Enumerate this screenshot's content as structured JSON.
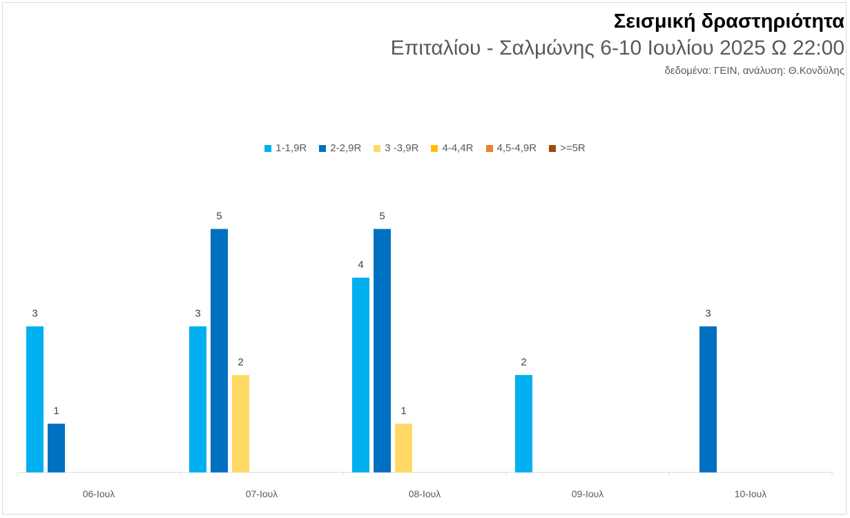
{
  "chart_data": {
    "type": "bar",
    "title": "Σεισμική δραστηριότητα",
    "subtitle": "Επιταλίου - Σαλμώνης 6-10 Ιουλίου 2025 Ω 22:00",
    "source": "δεδομένα: ΓΕΙΝ, ανάλυση: Θ.Κονδύλης",
    "categories": [
      "06-Ιουλ",
      "07-Ιουλ",
      "08-Ιουλ",
      "09-Ιουλ",
      "10-Ιουλ"
    ],
    "series": [
      {
        "name": "1-1,9R",
        "color": "#00B0F0",
        "values": [
          3,
          3,
          4,
          2,
          null
        ]
      },
      {
        "name": "2-2,9R",
        "color": "#0070C0",
        "values": [
          1,
          5,
          5,
          null,
          3
        ]
      },
      {
        "name": "3 -3,9R",
        "color": "#FFD966",
        "values": [
          null,
          2,
          1,
          null,
          null
        ]
      },
      {
        "name": "4-4,4R",
        "color": "#FFC000",
        "values": [
          null,
          null,
          null,
          null,
          null
        ]
      },
      {
        "name": "4,5-4,9R",
        "color": "#ED7D31",
        "values": [
          null,
          null,
          null,
          null,
          null
        ]
      },
      {
        "name": ">=5R",
        "color": "#9E480E",
        "values": [
          null,
          null,
          null,
          null,
          null
        ]
      }
    ],
    "ylim": [
      0,
      5
    ],
    "grid": false,
    "legend_position": "top",
    "xlabel": "",
    "ylabel": ""
  }
}
